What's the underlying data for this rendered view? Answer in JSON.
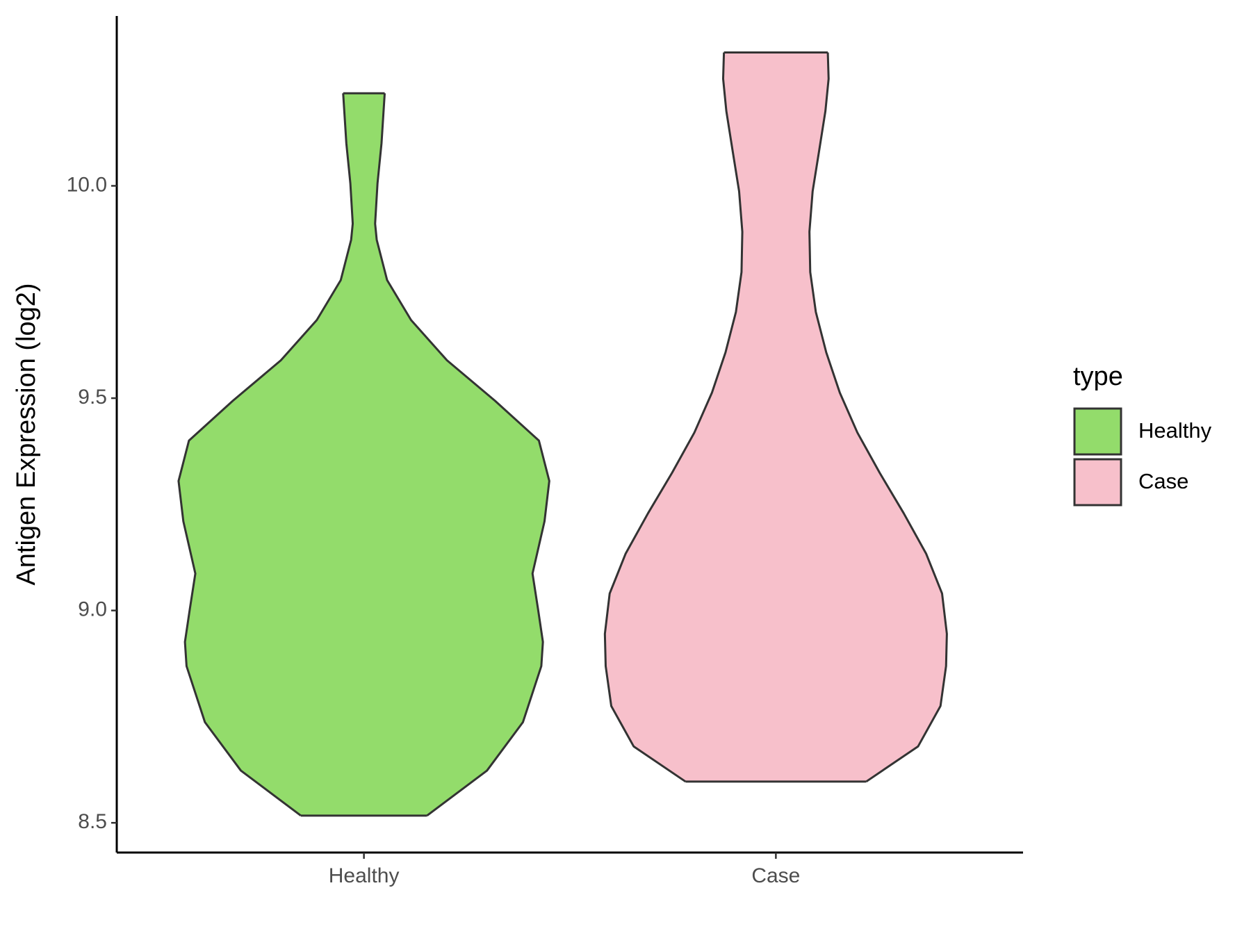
{
  "chart_data": {
    "type": "violin",
    "y_label": "Antigen Expression (log2)",
    "categories": [
      "Healthy",
      "Case"
    ],
    "legend_title": "type",
    "legend_position": "right",
    "ylim": [
      8.43,
      10.4
    ],
    "yticks": [
      {
        "value": 8.5,
        "label": "8.5"
      },
      {
        "value": 9,
        "label": "9.0"
      },
      {
        "value": 9.5,
        "label": "9.5"
      },
      {
        "value": 10,
        "label": "10.0"
      }
    ],
    "series": [
      {
        "name": "Healthy",
        "color": "#93dc6b",
        "y": [
          8.517,
          8.623,
          8.737,
          8.869,
          8.926,
          9.002,
          9.087,
          9.21,
          9.305,
          9.4,
          9.494,
          9.589,
          9.684,
          9.778,
          9.873,
          9.911,
          10.006,
          10.1,
          10.218
        ],
        "density": [
          79,
          154,
          199,
          222,
          224,
          218,
          211,
          226,
          232,
          219,
          164,
          104,
          59,
          29,
          16,
          14,
          17,
          22,
          26
        ]
      },
      {
        "name": "Case",
        "color": "#f7c0cb",
        "y": [
          8.597,
          8.68,
          8.775,
          8.869,
          8.945,
          9.04,
          9.134,
          9.229,
          9.324,
          9.419,
          9.513,
          9.608,
          9.703,
          9.797,
          9.892,
          9.987,
          10.081,
          10.176,
          10.252,
          10.314
        ],
        "density": [
          113,
          178,
          206,
          213,
          214,
          208,
          188,
          160,
          130,
          102,
          80,
          63,
          50,
          43,
          42,
          46,
          54,
          62,
          66,
          65
        ]
      }
    ]
  }
}
